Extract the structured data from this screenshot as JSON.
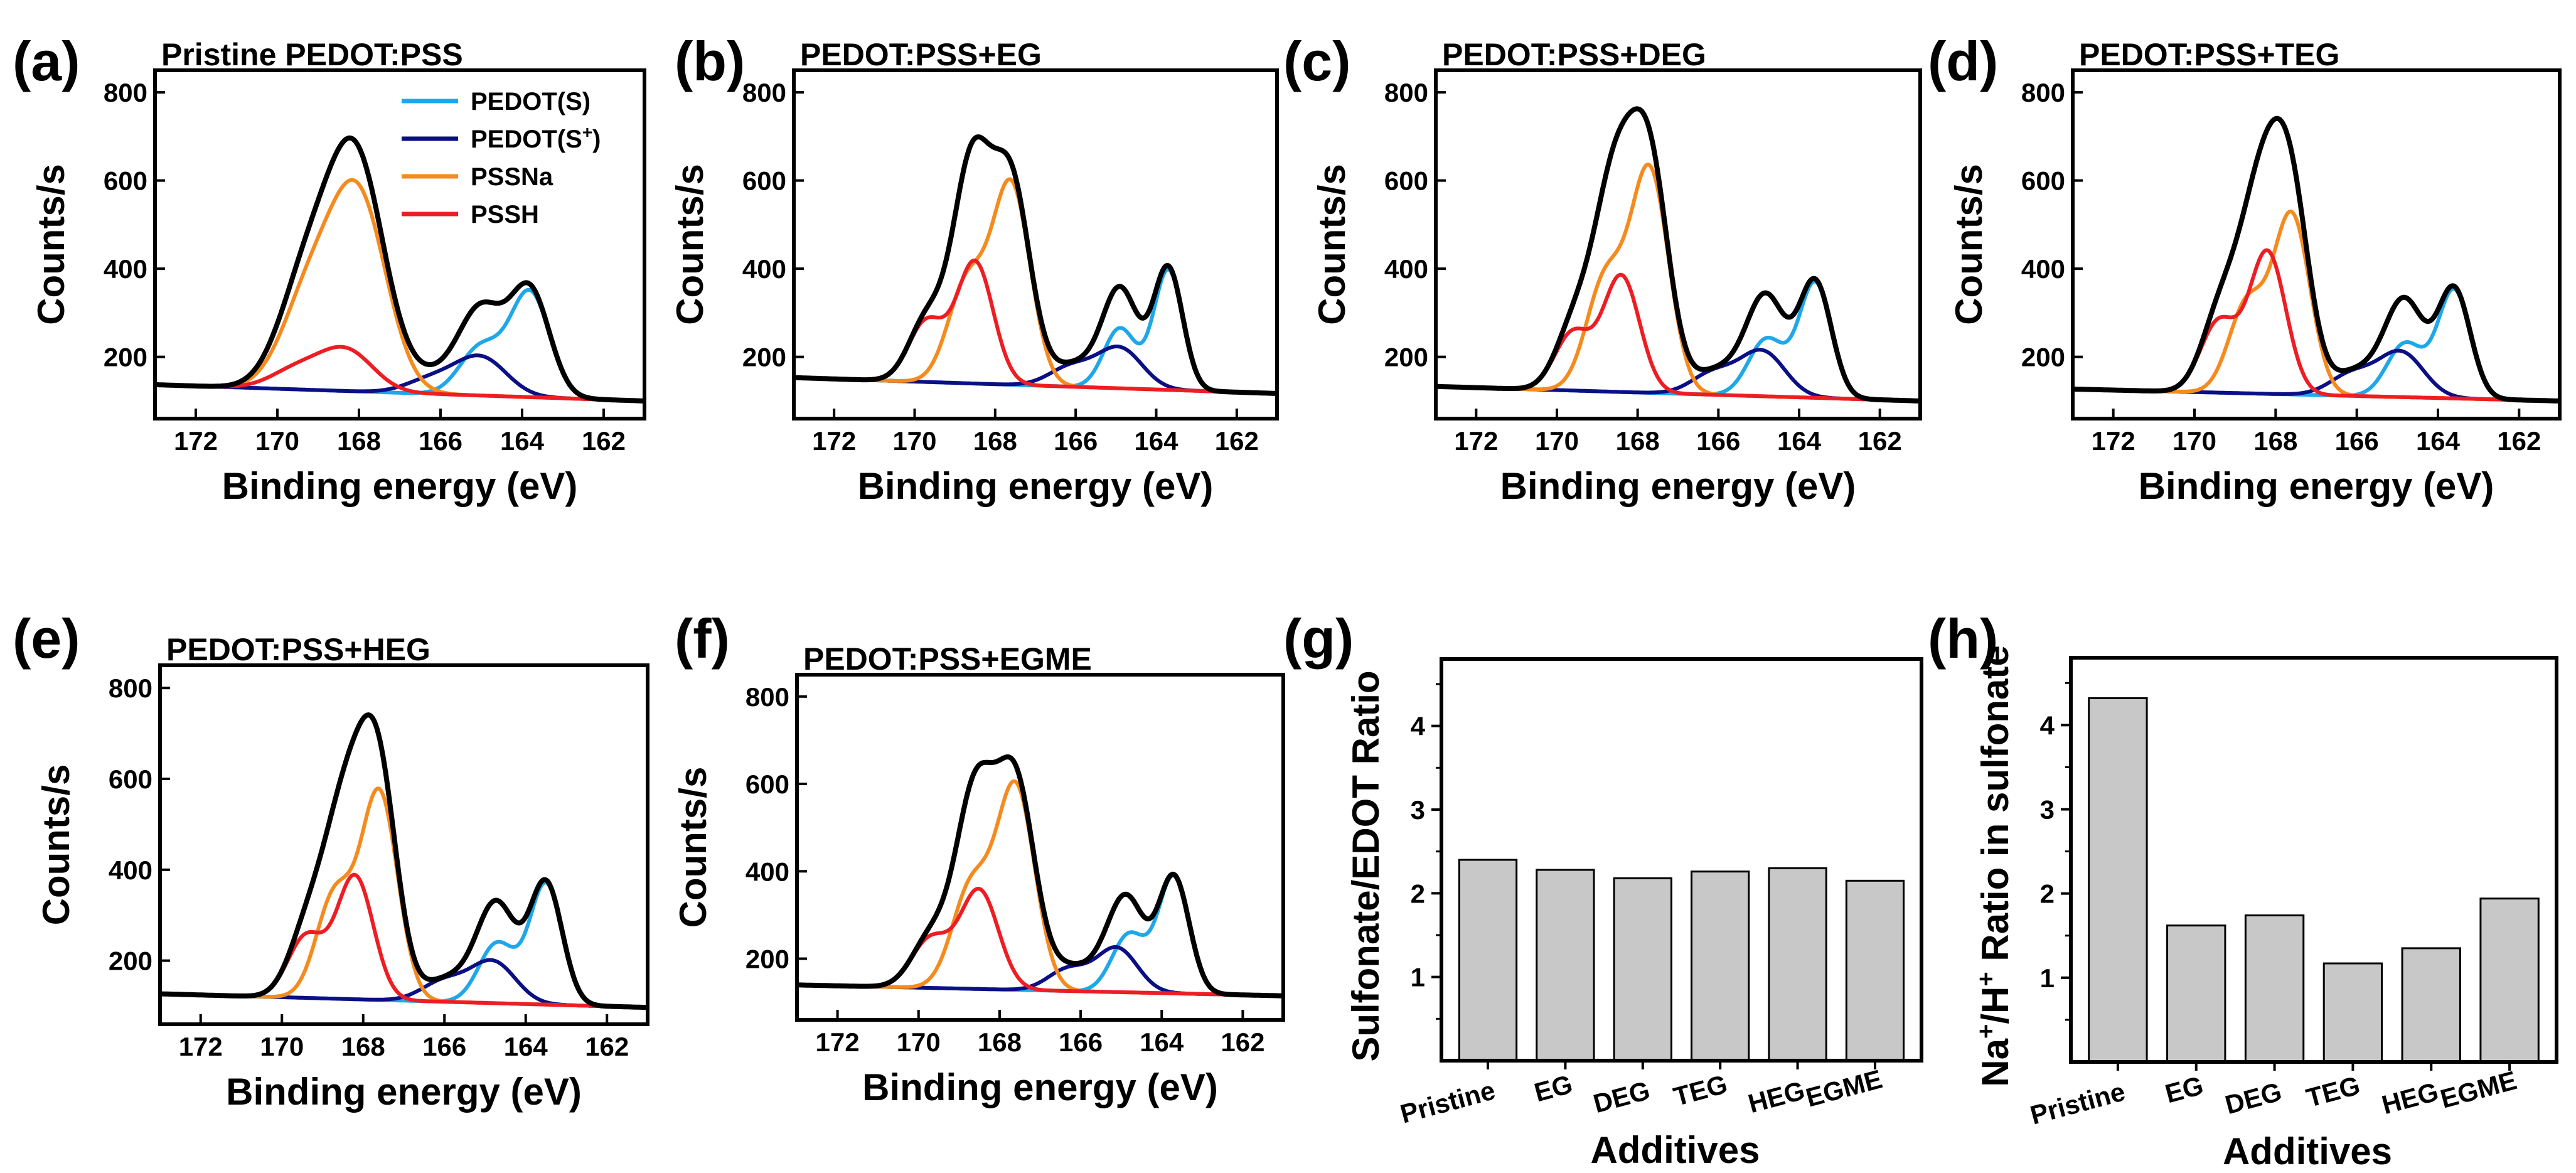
{
  "colors": {
    "envelope": "#000000",
    "PEDOT(S)": "#1ea7ea",
    "PEDOT(S+)": "#0b0f85",
    "PSSNa": "#f58b1e",
    "PSSH": "#ee1d24",
    "bar_fill": "#c8c8c8",
    "bar_edge": "#000000"
  },
  "legend": [
    {
      "key": "PEDOT(S)",
      "label": "PEDOT(S)"
    },
    {
      "key": "PEDOT(S+)",
      "label": "PEDOT(S",
      "sup": "+",
      "suffix": ")"
    },
    {
      "key": "PSSNa",
      "label": "PSSNa"
    },
    {
      "key": "PSSH",
      "label": "PSSH"
    }
  ],
  "chart_data": [
    {
      "panel": "(a)",
      "type": "line",
      "title": "Pristine PEDOT:PSS",
      "xlabel": "Binding energy (eV)",
      "ylabel": "Counts/s",
      "xlim": [
        173,
        161
      ],
      "ylim": [
        60,
        850
      ],
      "xticks": [
        172,
        170,
        168,
        166,
        164,
        162
      ],
      "yticks": [
        200,
        400,
        600,
        800
      ],
      "baseline": [
        137,
        100
      ],
      "series": [
        {
          "name": "PEDOT(S)",
          "peaks": [
            [
              163.8,
              235,
              0.48
            ],
            [
              165.0,
              110,
              0.52
            ]
          ]
        },
        {
          "name": "PEDOT(S+)",
          "peaks": [
            [
              165.0,
              85,
              0.62
            ],
            [
              166.2,
              33,
              0.62
            ]
          ]
        },
        {
          "name": "PSSNa",
          "peaks": [
            [
              168.0,
              425,
              0.68
            ],
            [
              169.2,
              212,
              0.68
            ]
          ]
        },
        {
          "name": "PSSH",
          "peaks": [
            [
              168.3,
              90,
              0.65
            ],
            [
              169.5,
              45,
              0.65
            ]
          ]
        }
      ]
    },
    {
      "panel": "(b)",
      "type": "line",
      "title": "PEDOT:PSS+EG",
      "xlabel": "Binding energy (eV)",
      "ylabel": "Counts/s",
      "xlim": [
        173,
        161
      ],
      "ylim": [
        60,
        850
      ],
      "xticks": [
        172,
        170,
        168,
        166,
        164,
        162
      ],
      "yticks": [
        200,
        400,
        600,
        800
      ],
      "baseline": [
        153,
        117
      ],
      "series": [
        {
          "name": "PEDOT(S)",
          "peaks": [
            [
              163.7,
              272,
              0.36
            ],
            [
              164.9,
              136,
              0.4
            ]
          ]
        },
        {
          "name": "PEDOT(S+)",
          "peaks": [
            [
              164.9,
              90,
              0.55
            ],
            [
              166.1,
              45,
              0.55
            ]
          ]
        },
        {
          "name": "PSSNa",
          "peaks": [
            [
              167.6,
              450,
              0.47
            ],
            [
              168.7,
              225,
              0.47
            ]
          ]
        },
        {
          "name": "PSSH",
          "peaks": [
            [
              168.5,
              275,
              0.45
            ],
            [
              169.7,
              137,
              0.45
            ]
          ]
        }
      ]
    },
    {
      "panel": "(c)",
      "type": "line",
      "title": "PEDOT:PSS+DEG",
      "xlabel": "Binding energy (eV)",
      "ylabel": "Counts/s",
      "xlim": [
        173,
        161
      ],
      "ylim": [
        60,
        850
      ],
      "xticks": [
        172,
        170,
        168,
        166,
        164,
        162
      ],
      "yticks": [
        200,
        400,
        600,
        800
      ],
      "baseline": [
        133,
        100
      ],
      "series": [
        {
          "name": "PEDOT(S)",
          "peaks": [
            [
              163.6,
              260,
              0.4
            ],
            [
              164.8,
              130,
              0.45
            ]
          ]
        },
        {
          "name": "PEDOT(S+)",
          "peaks": [
            [
              164.9,
              100,
              0.55
            ],
            [
              166.1,
              50,
              0.55
            ]
          ]
        },
        {
          "name": "PSSNa",
          "peaks": [
            [
              167.7,
              500,
              0.47
            ],
            [
              168.8,
              250,
              0.47
            ]
          ]
        },
        {
          "name": "PSSH",
          "peaks": [
            [
              168.4,
              262,
              0.45
            ],
            [
              169.6,
              131,
              0.45
            ]
          ]
        }
      ]
    },
    {
      "panel": "(d)",
      "type": "line",
      "title": "PEDOT:PSS+TEG",
      "xlabel": "Binding energy (eV)",
      "ylabel": "Counts/s",
      "xlim": [
        173,
        161
      ],
      "ylim": [
        60,
        850
      ],
      "xticks": [
        172,
        170,
        168,
        166,
        164,
        162
      ],
      "yticks": [
        200,
        400,
        600,
        800
      ],
      "baseline": [
        127,
        100
      ],
      "series": [
        {
          "name": "PEDOT(S)",
          "peaks": [
            [
              163.6,
              245,
              0.4
            ],
            [
              164.8,
              122,
              0.45
            ]
          ]
        },
        {
          "name": "PEDOT(S+)",
          "peaks": [
            [
              164.9,
              100,
              0.55
            ],
            [
              166.1,
              50,
              0.55
            ]
          ]
        },
        {
          "name": "PSSNa",
          "peaks": [
            [
              167.6,
              404,
              0.45
            ],
            [
              168.7,
              202,
              0.45
            ]
          ]
        },
        {
          "name": "PSSH",
          "peaks": [
            [
              168.2,
              321,
              0.45
            ],
            [
              169.4,
              160,
              0.45
            ]
          ]
        }
      ]
    },
    {
      "panel": "(e)",
      "type": "line",
      "title": "PEDOT:PSS+HEG",
      "xlabel": "Binding energy (eV)",
      "ylabel": "Counts/s",
      "xlim": [
        173,
        161
      ],
      "ylim": [
        60,
        850
      ],
      "xticks": [
        172,
        170,
        168,
        166,
        164,
        162
      ],
      "yticks": [
        200,
        400,
        600,
        800
      ],
      "baseline": [
        127,
        97
      ],
      "series": [
        {
          "name": "PEDOT(S)",
          "peaks": [
            [
              163.5,
              265,
              0.4
            ],
            [
              164.7,
              132,
              0.45
            ]
          ]
        },
        {
          "name": "PEDOT(S+)",
          "peaks": [
            [
              164.8,
              90,
              0.55
            ],
            [
              166.0,
              45,
              0.55
            ]
          ]
        },
        {
          "name": "PSSNa",
          "peaks": [
            [
              167.6,
              453,
              0.45
            ],
            [
              168.7,
              226,
              0.45
            ]
          ]
        },
        {
          "name": "PSSH",
          "peaks": [
            [
              168.2,
              270,
              0.45
            ],
            [
              169.4,
              135,
              0.45
            ]
          ]
        }
      ]
    },
    {
      "panel": "(f)",
      "type": "line",
      "title": "PEDOT:PSS+EGME",
      "xlabel": "Binding energy (eV)",
      "ylabel": "Counts/s",
      "xlim": [
        173,
        161
      ],
      "ylim": [
        60,
        850
      ],
      "xticks": [
        172,
        170,
        168,
        166,
        164,
        162
      ],
      "yticks": [
        200,
        400,
        600,
        800
      ],
      "baseline": [
        140,
        115
      ],
      "series": [
        {
          "name": "PEDOT(S)",
          "peaks": [
            [
              163.7,
              266,
              0.38
            ],
            [
              164.8,
              133,
              0.42
            ]
          ]
        },
        {
          "name": "PEDOT(S+)",
          "peaks": [
            [
              165.1,
              100,
              0.5
            ],
            [
              166.3,
              50,
              0.5
            ]
          ]
        },
        {
          "name": "PSSNa",
          "peaks": [
            [
              167.6,
              461,
              0.47
            ],
            [
              168.7,
              230,
              0.47
            ]
          ]
        },
        {
          "name": "PSSH",
          "peaks": [
            [
              168.5,
              225,
              0.47
            ],
            [
              169.7,
              112,
              0.47
            ]
          ]
        }
      ]
    },
    {
      "panel": "(g)",
      "type": "bar",
      "xlabel": "Additives",
      "ylabel": "Sulfonate/EDOT Ratio",
      "ylim": [
        0,
        4.8
      ],
      "yticks": [
        1,
        2,
        3,
        4
      ],
      "categories": [
        "Pristine",
        "EG",
        "DEG",
        "TEG",
        "HEG",
        "EGME"
      ],
      "values": [
        2.4,
        2.28,
        2.18,
        2.26,
        2.3,
        2.15
      ]
    },
    {
      "panel": "(h)",
      "type": "bar",
      "xlabel": "Additives",
      "ylabel": "Na+/H+ Ratio in sulfonate",
      "ylim": [
        0,
        4.8
      ],
      "yticks": [
        1,
        2,
        3,
        4
      ],
      "categories": [
        "Pristine",
        "EG",
        "DEG",
        "TEG",
        "HEG",
        "EGME"
      ],
      "values": [
        4.32,
        1.62,
        1.74,
        1.17,
        1.35,
        1.94
      ]
    }
  ]
}
